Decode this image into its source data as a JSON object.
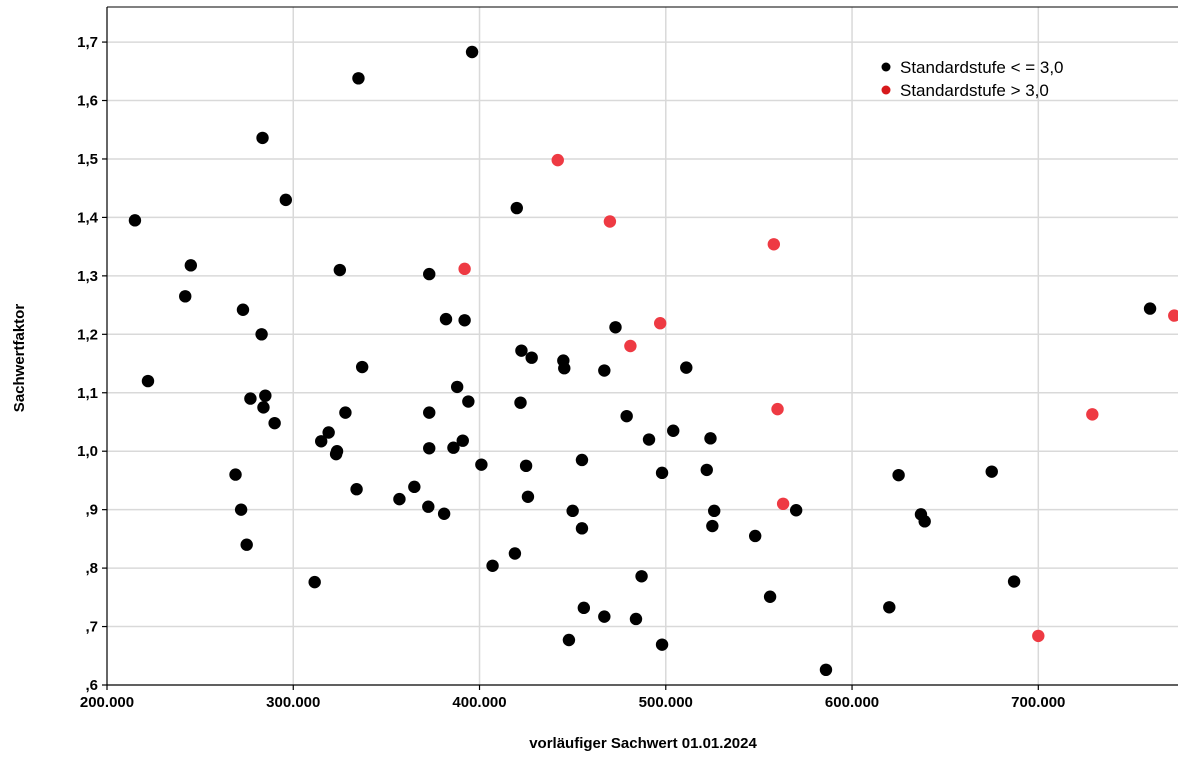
{
  "chart_data": {
    "type": "scatter",
    "title": "",
    "xlabel": "vorläufiger Sachwert  01.01.2024",
    "ylabel": "Sachwertfaktor",
    "xlim": [
      200000,
      775000
    ],
    "ylim": [
      0.6,
      1.76
    ],
    "grid": true,
    "legend_position": "top-right",
    "x_ticks": [
      200000,
      300000,
      400000,
      500000,
      600000,
      700000
    ],
    "x_tick_labels": [
      "200.000",
      "300.000",
      "400.000",
      "500.000",
      "600.000",
      "700.000"
    ],
    "y_ticks": [
      0.6,
      0.7,
      0.8,
      0.9,
      1.0,
      1.1,
      1.2,
      1.3,
      1.4,
      1.5,
      1.6,
      1.7
    ],
    "y_tick_labels": [
      ",6",
      ",7",
      ",8",
      ",9",
      "1,0",
      "1,1",
      "1,2",
      "1,3",
      "1,4",
      "1,5",
      "1,6",
      "1,7"
    ],
    "series": [
      {
        "name": "Standardstufe < = 3,0",
        "color": "#000000",
        "legend_color": "#000000",
        "points": [
          [
            215000,
            1.395
          ],
          [
            222000,
            1.12
          ],
          [
            242000,
            1.265
          ],
          [
            245000,
            1.318
          ],
          [
            269000,
            0.96
          ],
          [
            272000,
            0.9
          ],
          [
            273000,
            1.242
          ],
          [
            275000,
            0.84
          ],
          [
            277000,
            1.09
          ],
          [
            283000,
            1.2
          ],
          [
            283500,
            1.536
          ],
          [
            284000,
            1.075
          ],
          [
            285000,
            1.095
          ],
          [
            290000,
            1.048
          ],
          [
            296000,
            1.43
          ],
          [
            311500,
            0.776
          ],
          [
            315000,
            1.017
          ],
          [
            319000,
            1.032
          ],
          [
            323000,
            0.995
          ],
          [
            323500,
            1.0
          ],
          [
            325000,
            1.31
          ],
          [
            328000,
            1.066
          ],
          [
            334000,
            0.935
          ],
          [
            335000,
            1.638
          ],
          [
            337000,
            1.144
          ],
          [
            357000,
            0.918
          ],
          [
            365000,
            0.939
          ],
          [
            372500,
            0.905
          ],
          [
            373000,
            1.066
          ],
          [
            373000,
            1.005
          ],
          [
            373000,
            1.303
          ],
          [
            381000,
            0.893
          ],
          [
            382000,
            1.226
          ],
          [
            386000,
            1.006
          ],
          [
            388000,
            1.11
          ],
          [
            391000,
            1.018
          ],
          [
            392000,
            1.224
          ],
          [
            394000,
            1.085
          ],
          [
            396000,
            1.683
          ],
          [
            401000,
            0.977
          ],
          [
            407000,
            0.804
          ],
          [
            419000,
            0.825
          ],
          [
            420000,
            1.416
          ],
          [
            422000,
            1.083
          ],
          [
            422500,
            1.172
          ],
          [
            425000,
            0.975
          ],
          [
            426000,
            0.922
          ],
          [
            428000,
            1.16
          ],
          [
            445000,
            1.155
          ],
          [
            445500,
            1.142
          ],
          [
            448000,
            0.677
          ],
          [
            450000,
            0.898
          ],
          [
            455000,
            0.985
          ],
          [
            455000,
            0.868
          ],
          [
            456000,
            0.732
          ],
          [
            467000,
            0.717
          ],
          [
            467000,
            1.138
          ],
          [
            473000,
            1.212
          ],
          [
            479000,
            1.06
          ],
          [
            484000,
            0.713
          ],
          [
            487000,
            0.786
          ],
          [
            491000,
            1.02
          ],
          [
            498000,
            0.669
          ],
          [
            498000,
            0.963
          ],
          [
            504000,
            1.035
          ],
          [
            511000,
            1.143
          ],
          [
            522000,
            0.968
          ],
          [
            524000,
            1.022
          ],
          [
            525000,
            0.872
          ],
          [
            526000,
            0.898
          ],
          [
            548000,
            0.855
          ],
          [
            556000,
            0.751
          ],
          [
            570000,
            0.899
          ],
          [
            586000,
            0.626
          ],
          [
            620000,
            0.733
          ],
          [
            625000,
            0.959
          ],
          [
            637000,
            0.892
          ],
          [
            639000,
            0.88
          ],
          [
            675000,
            0.965
          ],
          [
            687000,
            0.777
          ],
          [
            760000,
            1.244
          ]
        ]
      },
      {
        "name": "Standardstufe > 3,0",
        "color": "#ee3a43",
        "legend_color": "#d7191c",
        "points": [
          [
            392000,
            1.312
          ],
          [
            442000,
            1.498
          ],
          [
            470000,
            1.393
          ],
          [
            481000,
            1.18
          ],
          [
            497000,
            1.219
          ],
          [
            558000,
            1.354
          ],
          [
            560000,
            1.072
          ],
          [
            563000,
            0.91
          ],
          [
            700000,
            0.684
          ],
          [
            729000,
            1.063
          ],
          [
            773000,
            1.232
          ]
        ]
      }
    ]
  }
}
